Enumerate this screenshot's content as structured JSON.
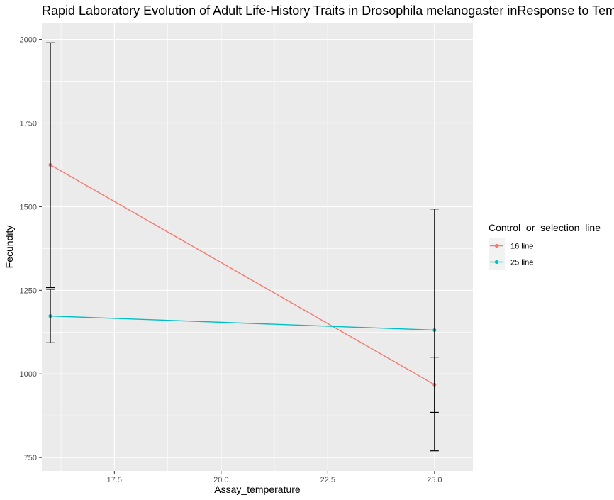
{
  "chart_data": {
    "type": "line",
    "title": "Rapid Laboratory Evolution of Adult Life-History Traits in Drosophila melanogaster inResponse to Temperature",
    "xlabel": "Assay_temperature",
    "ylabel": "Fecundity",
    "xlim": [
      15.8,
      25.9
    ],
    "ylim": [
      710,
      2050
    ],
    "x_ticks": [
      17.5,
      20.0,
      22.5,
      25.0
    ],
    "x_tick_labels": [
      "17.5",
      "20.0",
      "22.5",
      "25.0"
    ],
    "y_ticks": [
      750,
      1000,
      1250,
      1500,
      1750,
      2000
    ],
    "y_tick_labels": [
      "750",
      "1000",
      "1250",
      "1500",
      "1750",
      "2000"
    ],
    "grid": true,
    "legend": {
      "title": "Control_or_selection_line",
      "placement": "right"
    },
    "series": [
      {
        "name": "16 line",
        "color": "#F8766D",
        "x": [
          16,
          25
        ],
        "y": [
          1625,
          968
        ],
        "err_low": [
          1258,
          885
        ],
        "err_high": [
          1990,
          1050
        ]
      },
      {
        "name": "25 line",
        "color": "#00BFC4",
        "x": [
          16,
          25
        ],
        "y": [
          1173,
          1131
        ],
        "err_low": [
          1093,
          770
        ],
        "err_high": [
          1253,
          1493
        ]
      }
    ]
  }
}
